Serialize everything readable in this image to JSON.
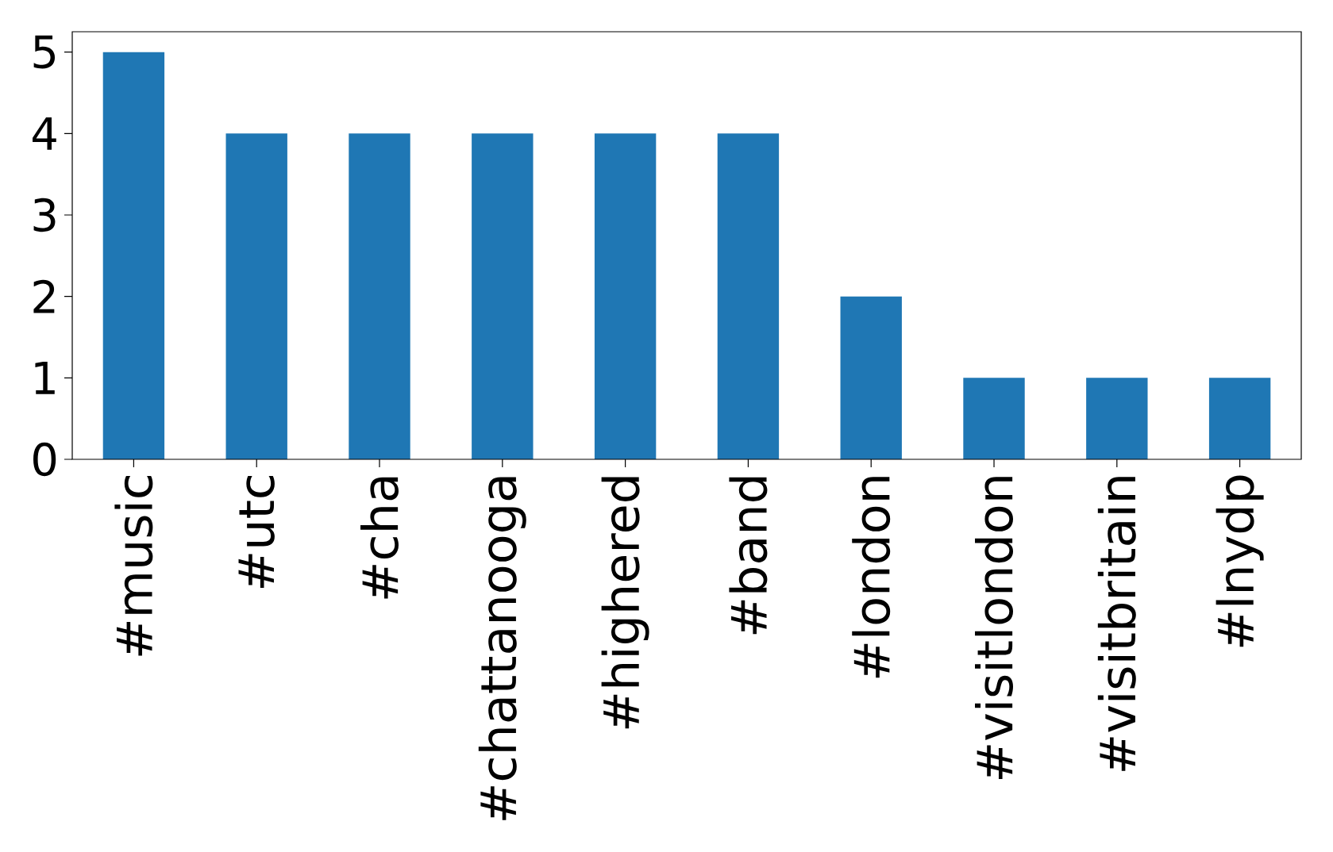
{
  "chart_data": {
    "type": "bar",
    "categories": [
      "#music",
      "#utc",
      "#cha",
      "#chattanooga",
      "#highered",
      "#band",
      "#london",
      "#visitlondon",
      "#visitbritain",
      "#lnydp"
    ],
    "values": [
      5,
      4,
      4,
      4,
      4,
      4,
      2,
      1,
      1,
      1
    ],
    "color": "#1f77b4",
    "ylim": [
      0,
      5.25
    ],
    "yticks": [
      0,
      1,
      2,
      3,
      4,
      5
    ],
    "grid": false
  }
}
